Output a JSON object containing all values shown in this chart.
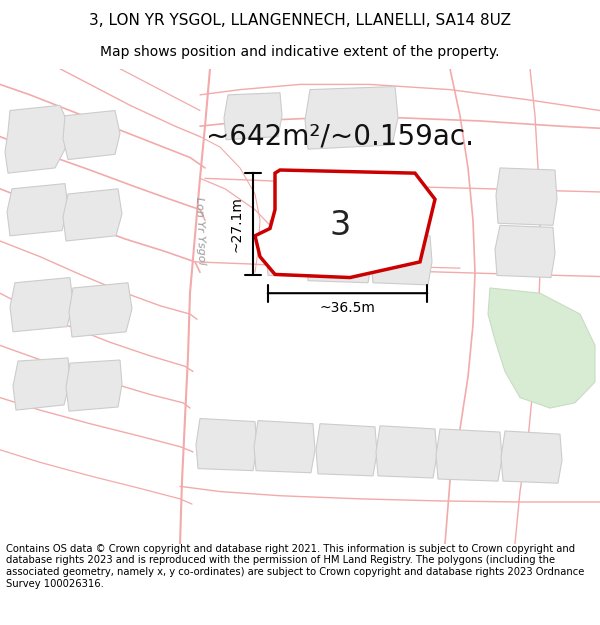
{
  "title_line1": "3, LON YR YSGOL, LLANGENNECH, LLANELLI, SA14 8UZ",
  "title_line2": "Map shows position and indicative extent of the property.",
  "area_text": "~642m²/~0.159ac.",
  "number_label": "3",
  "dim_horizontal": "~36.5m",
  "dim_vertical": "~27.1m",
  "street_label": "Lon Yr Ysgol",
  "footer_text": "Contains OS data © Crown copyright and database right 2021. This information is subject to Crown copyright and database rights 2023 and is reproduced with the permission of HM Land Registry. The polygons (including the associated geometry, namely x, y co-ordinates) are subject to Crown copyright and database rights 2023 Ordnance Survey 100026316.",
  "bg_color": "#ffffff",
  "road_color": "#f2aaaa",
  "building_fill": "#e8e8e8",
  "building_edge": "#cccccc",
  "property_fill": "#ffffff",
  "property_edge": "#cc0000",
  "green_fill": "#d8ecd4",
  "green_edge": "#c8dcc4",
  "title_fontsize": 11,
  "subtitle_fontsize": 10,
  "area_fontsize": 20,
  "number_fontsize": 24,
  "dim_fontsize": 10,
  "street_fontsize": 8,
  "footer_fontsize": 7.2
}
